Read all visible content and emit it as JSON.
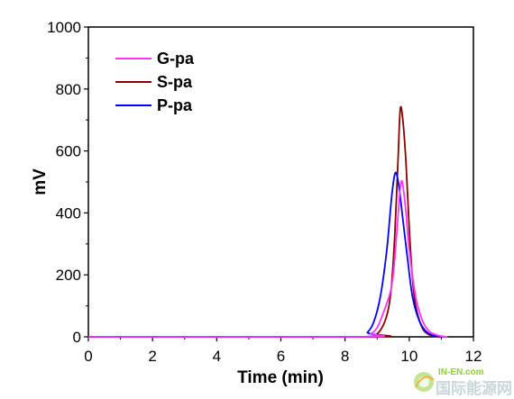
{
  "chart_data": {
    "type": "line",
    "xlabel": "Time (min)",
    "ylabel": "mV",
    "xlim": [
      0,
      12
    ],
    "ylim": [
      0,
      1000
    ],
    "xticks": [
      0,
      2,
      4,
      6,
      8,
      10,
      12
    ],
    "yticks": [
      0,
      200,
      400,
      600,
      800,
      1000
    ],
    "grid": false,
    "legend_position": "top-left",
    "series": [
      {
        "name": "G-pa",
        "color": "#ff33ff",
        "x": [
          0,
          8.5,
          8.8,
          9.0,
          9.2,
          9.4,
          9.5,
          9.6,
          9.7,
          9.75,
          9.8,
          9.9,
          10.0,
          10.2,
          10.4,
          10.6,
          10.8,
          11.0,
          11.2
        ],
        "y": [
          0,
          0,
          10,
          30,
          80,
          140,
          200,
          320,
          460,
          500,
          490,
          400,
          280,
          130,
          55,
          20,
          8,
          2,
          0
        ]
      },
      {
        "name": "S-pa",
        "color": "#8b0000",
        "x": [
          0,
          8.7,
          9.0,
          9.2,
          9.35,
          9.45,
          9.55,
          9.65,
          9.72,
          9.8,
          9.9,
          10.0,
          10.1,
          10.2,
          10.4,
          10.6,
          10.8,
          11.0
        ],
        "y": [
          0,
          0,
          10,
          40,
          90,
          170,
          330,
          570,
          735,
          700,
          560,
          350,
          190,
          100,
          30,
          8,
          2,
          0
        ]
      },
      {
        "name": "P-pa",
        "color": "#0000ff",
        "x": [
          0,
          8.4,
          8.7,
          8.9,
          9.1,
          9.3,
          9.45,
          9.55,
          9.62,
          9.7,
          9.8,
          9.95,
          10.1,
          10.3,
          10.5,
          10.7,
          10.9,
          11.1
        ],
        "y": [
          0,
          0,
          15,
          50,
          130,
          280,
          450,
          525,
          520,
          470,
          380,
          250,
          130,
          55,
          20,
          6,
          2,
          0
        ]
      }
    ]
  },
  "watermark": {
    "small_text": "IN-EN.com",
    "big_text": "国际能源网"
  }
}
